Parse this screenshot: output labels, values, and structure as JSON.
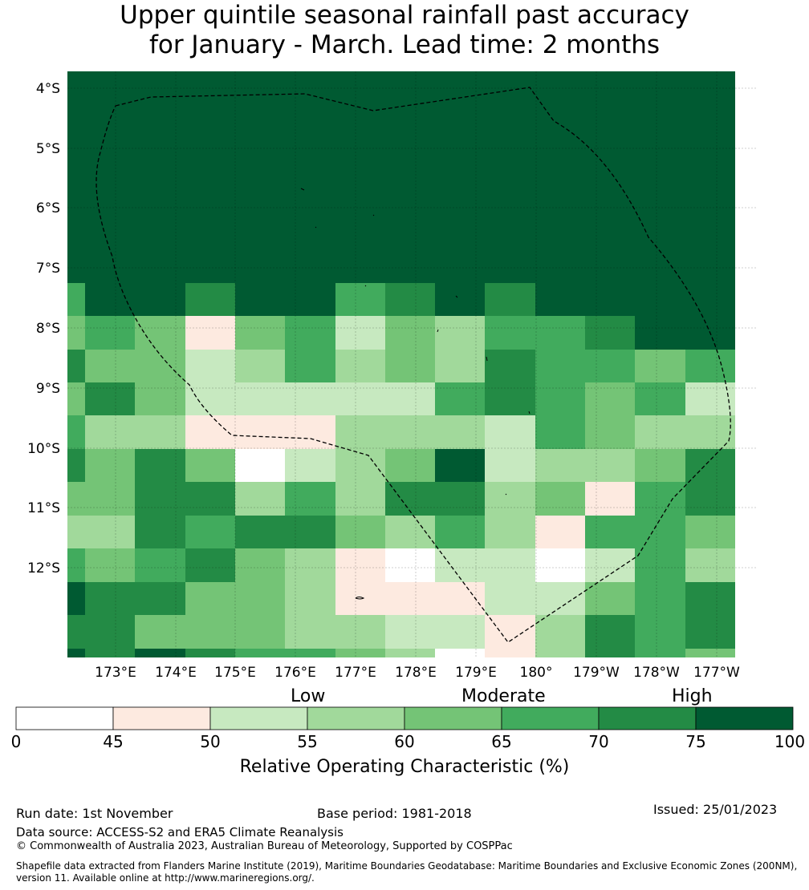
{
  "title": {
    "line1": "Upper quintile seasonal rainfall past accuracy",
    "line2": "for January - March. Lead time: 2 months"
  },
  "map": {
    "lat_ticks": [
      "4°S",
      "5°S",
      "6°S",
      "7°S",
      "8°S",
      "9°S",
      "10°S",
      "11°S",
      "12°S"
    ],
    "lon_ticks": [
      "173°E",
      "174°E",
      "175°E",
      "176°E",
      "177°E",
      "178°E",
      "179°E",
      "180°",
      "179°W",
      "178°W",
      "177°W"
    ],
    "grid_colors_legend": "values are ROC class indices 0-7 (0:<45, 1:45-50, 2:50-55, 3:55-60, 4:60-65, 5:65-70, 6:70-75, 7:75-100)",
    "grid": [
      [
        7,
        7,
        7,
        7,
        7,
        7,
        7,
        7,
        7,
        7,
        7,
        7,
        7,
        7
      ],
      [
        7,
        7,
        7,
        7,
        7,
        7,
        7,
        7,
        7,
        7,
        7,
        7,
        7,
        7
      ],
      [
        7,
        7,
        7,
        7,
        7,
        7,
        7,
        7,
        7,
        7,
        7,
        7,
        7,
        7
      ],
      [
        7,
        7,
        7,
        7,
        7,
        7,
        7,
        7,
        7,
        7,
        7,
        7,
        7,
        7
      ],
      [
        7,
        7,
        7,
        7,
        7,
        7,
        7,
        7,
        7,
        7,
        7,
        7,
        7,
        7
      ],
      [
        7,
        7,
        7,
        7,
        7,
        7,
        7,
        7,
        7,
        7,
        7,
        7,
        7,
        7
      ],
      [
        5,
        7,
        7,
        6,
        7,
        7,
        5,
        6,
        7,
        6,
        7,
        7,
        7,
        7
      ],
      [
        4,
        5,
        4,
        1,
        4,
        5,
        2,
        4,
        3,
        5,
        5,
        6,
        7,
        7
      ],
      [
        6,
        4,
        4,
        2,
        3,
        5,
        3,
        4,
        3,
        6,
        5,
        5,
        4,
        5
      ],
      [
        4,
        6,
        4,
        2,
        2,
        2,
        2,
        2,
        5,
        6,
        5,
        4,
        5,
        2
      ],
      [
        5,
        3,
        3,
        1,
        1,
        1,
        3,
        3,
        3,
        2,
        5,
        4,
        3,
        3
      ],
      [
        6,
        4,
        6,
        4,
        0,
        2,
        3,
        4,
        7,
        2,
        3,
        3,
        4,
        6
      ],
      [
        4,
        4,
        6,
        6,
        3,
        5,
        3,
        6,
        6,
        3,
        4,
        1,
        5,
        6
      ],
      [
        3,
        3,
        6,
        5,
        6,
        6,
        4,
        3,
        5,
        3,
        1,
        5,
        5,
        4
      ],
      [
        5,
        4,
        5,
        6,
        4,
        3,
        1,
        0,
        2,
        2,
        0,
        2,
        5,
        3
      ],
      [
        7,
        6,
        6,
        4,
        4,
        3,
        1,
        1,
        1,
        2,
        2,
        4,
        5,
        6
      ],
      [
        6,
        6,
        4,
        4,
        4,
        3,
        3,
        2,
        2,
        1,
        3,
        6,
        5,
        6
      ],
      [
        7,
        6,
        7,
        6,
        5,
        5,
        4,
        3,
        0,
        1,
        3,
        6,
        5,
        4
      ]
    ],
    "colors": [
      "#ffffff",
      "#fdeae0",
      "#c7e9c0",
      "#a1d99b",
      "#74c476",
      "#41ab5d",
      "#238b45",
      "#005a32"
    ]
  },
  "colorbar": {
    "category_labels": [
      "Low",
      "Moderate",
      "High"
    ],
    "tick_labels": [
      "0",
      "45",
      "50",
      "55",
      "60",
      "65",
      "70",
      "75",
      "100"
    ],
    "title": "Relative Operating Characteristic (%)"
  },
  "footer": {
    "run_date": "Run date: 1st November",
    "base_period": "Base period: 1981-2018",
    "issued": "Issued: 25/01/2023",
    "data_source": "Data source: ACCESS-S2 and ERA5 Climate Reanalysis",
    "copyright": "© Commonwealth of Australia 2023, Australian Bureau of Meteorology, Supported by COSPPac",
    "shapefile_line1": "Shapefile data extracted from Flanders Marine Institute (2019), Maritime Boundaries Geodatabase: Maritime Boundaries and Exclusive Economic Zones (200NM),",
    "shapefile_line2": "version 11. Available online at http://www.marineregions.org/."
  }
}
